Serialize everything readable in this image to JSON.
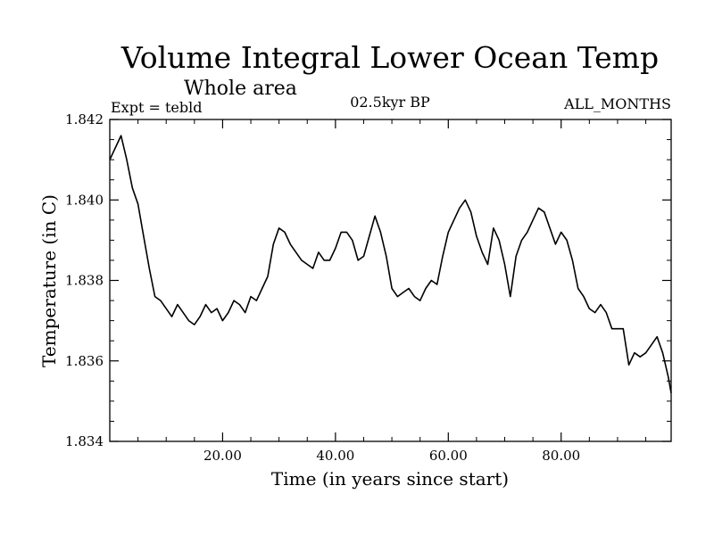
{
  "chart_data": {
    "type": "line",
    "title": "Volume Integral Lower Ocean Temp",
    "subtitle": "Whole area",
    "left_label": "Expt = tebld",
    "center_label": "02.5kyr BP",
    "right_label": "ALL_MONTHS",
    "xlabel": "Time (in years since start)",
    "ylabel": "Temperature (in C)",
    "xlim": [
      0,
      99.5
    ],
    "ylim": [
      1.834,
      1.842
    ],
    "x_ticks": [
      20,
      40,
      60,
      80
    ],
    "x_tick_labels": [
      "20.00",
      "40.00",
      "60.00",
      "80.00"
    ],
    "y_ticks": [
      1.834,
      1.836,
      1.838,
      1.84,
      1.842
    ],
    "y_tick_labels": [
      "1.834",
      "1.836",
      "1.838",
      "1.840",
      "1.842"
    ],
    "series": [
      {
        "name": "Volume Integral Lower Ocean Temp",
        "color": "#000000",
        "x": [
          0,
          1,
          2,
          3,
          4,
          5,
          6,
          7,
          8,
          9,
          10,
          11,
          12,
          13,
          14,
          15,
          16,
          17,
          18,
          19,
          20,
          21,
          22,
          23,
          24,
          25,
          26,
          27,
          28,
          29,
          30,
          31,
          32,
          33,
          34,
          35,
          36,
          37,
          38,
          39,
          40,
          41,
          42,
          43,
          44,
          45,
          46,
          47,
          48,
          49,
          50,
          51,
          52,
          53,
          54,
          55,
          56,
          57,
          58,
          59,
          60,
          61,
          62,
          63,
          64,
          65,
          66,
          67,
          68,
          69,
          70,
          71,
          72,
          73,
          74,
          75,
          76,
          77,
          78,
          79,
          80,
          81,
          82,
          83,
          84,
          85,
          86,
          87,
          88,
          89,
          90,
          91,
          92,
          93,
          94,
          95,
          96,
          97,
          98,
          99,
          99.5
        ],
        "values": [
          1.841,
          1.8413,
          1.8416,
          1.841,
          1.8403,
          1.8399,
          1.8391,
          1.8383,
          1.8376,
          1.8375,
          1.8373,
          1.8371,
          1.8374,
          1.8372,
          1.837,
          1.8369,
          1.8371,
          1.8374,
          1.8372,
          1.8373,
          1.837,
          1.8372,
          1.8375,
          1.8374,
          1.8372,
          1.8376,
          1.8375,
          1.8378,
          1.8381,
          1.8389,
          1.8393,
          1.8392,
          1.8389,
          1.8387,
          1.8385,
          1.8384,
          1.8383,
          1.8387,
          1.8385,
          1.8385,
          1.8388,
          1.8392,
          1.8392,
          1.839,
          1.8385,
          1.8386,
          1.8391,
          1.8396,
          1.8392,
          1.8386,
          1.8378,
          1.8376,
          1.8377,
          1.8378,
          1.8376,
          1.8375,
          1.8378,
          1.838,
          1.8379,
          1.8386,
          1.8392,
          1.8395,
          1.8398,
          1.84,
          1.8397,
          1.8391,
          1.8387,
          1.8384,
          1.8393,
          1.839,
          1.8384,
          1.8376,
          1.8386,
          1.839,
          1.8392,
          1.8395,
          1.8398,
          1.8397,
          1.8393,
          1.8389,
          1.8392,
          1.839,
          1.8385,
          1.8378,
          1.8376,
          1.8373,
          1.8372,
          1.8374,
          1.8372,
          1.8368,
          1.8368,
          1.8368,
          1.8359,
          1.8362,
          1.8361,
          1.8362,
          1.8364,
          1.8366,
          1.8362,
          1.8356,
          1.8352
        ]
      }
    ]
  }
}
